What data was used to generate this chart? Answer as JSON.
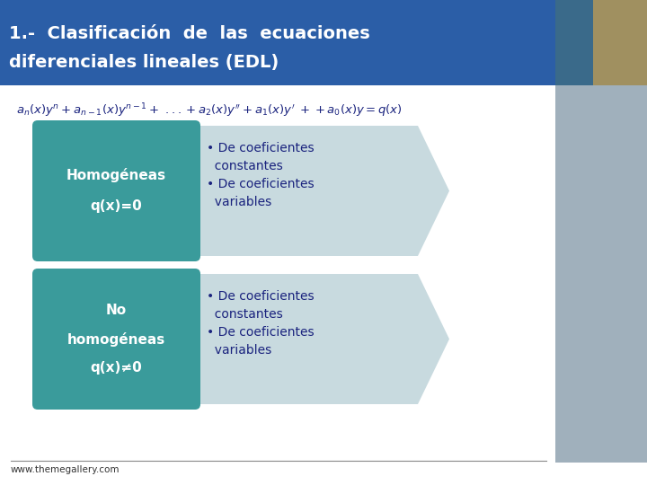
{
  "title_line1": "1.-  Clasificación  de  las  ecuaciones",
  "title_line2": "diferenciales lineales (EDL)",
  "title_bg_color": "#2B5EA7",
  "title_text_color": "#FFFFFF",
  "box1_color": "#3A9B9B",
  "box1_label1": "Homogéneas",
  "box1_label2": "q(x)=0",
  "box2_color": "#3A9B9B",
  "box2_label1": "No",
  "box2_label2": "homogéneas",
  "box2_label3": "q(x)≠0",
  "arrow_color": "#C8DADF",
  "bullet_color": "#1A237E",
  "bullet1_text": "• De coeficientes\n  constantes\n• De coeficientes\n  variables",
  "bullet2_text": "• De coeficientes\n  constantes\n• De coeficientes\n  variables",
  "footer_text": "www.themegallery.com",
  "bg_color": "#FFFFFF",
  "sidebar_color": "#A0B0BC",
  "title_img_color": "#5B7A5E",
  "formula_color": "#1A237E"
}
